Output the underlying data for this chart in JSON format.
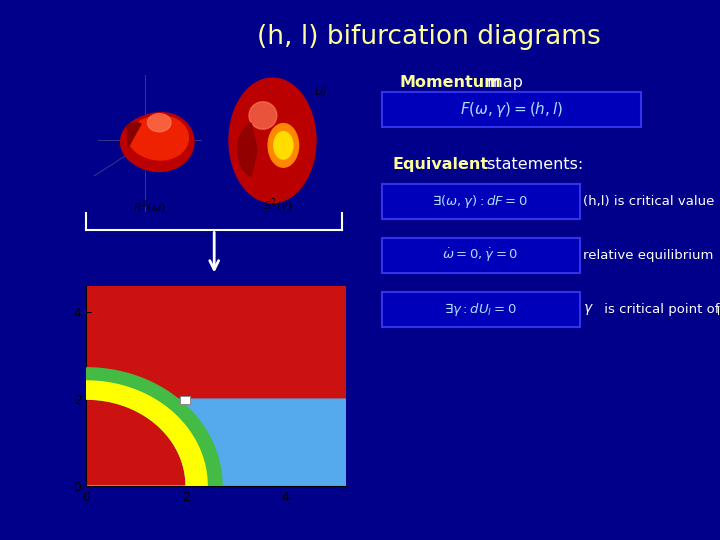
{
  "title": "(h, l) bifurcation diagrams",
  "title_color": "#FFFF99",
  "bg_color": "#00008B",
  "formula_bg": "#0000BB",
  "formula_border": "#3333EE",
  "white_text": "#FFFFFF",
  "yellow_text": "#FFFF99",
  "momentum_bold": "Momentum",
  "momentum_rest": " map",
  "equivalent_bold": "Equivalent",
  "equivalent_rest": " statements:",
  "eq1_text": "(h,l) is critical value",
  "eq2_text": "relative equilibrium",
  "eq3_gamma": "γ",
  "eq3_text": " is critical point of U",
  "eq3_sub": "l",
  "bif_red": "#CC1111",
  "bif_yellow": "#FFFF00",
  "bif_green": "#44BB44",
  "bif_cyan": "#55AAEE",
  "r_inner": 2.0,
  "r_yellow": 2.45,
  "r_green": 2.72,
  "r_outer": 4.3,
  "xmax": 5.2,
  "ymax": 4.6
}
